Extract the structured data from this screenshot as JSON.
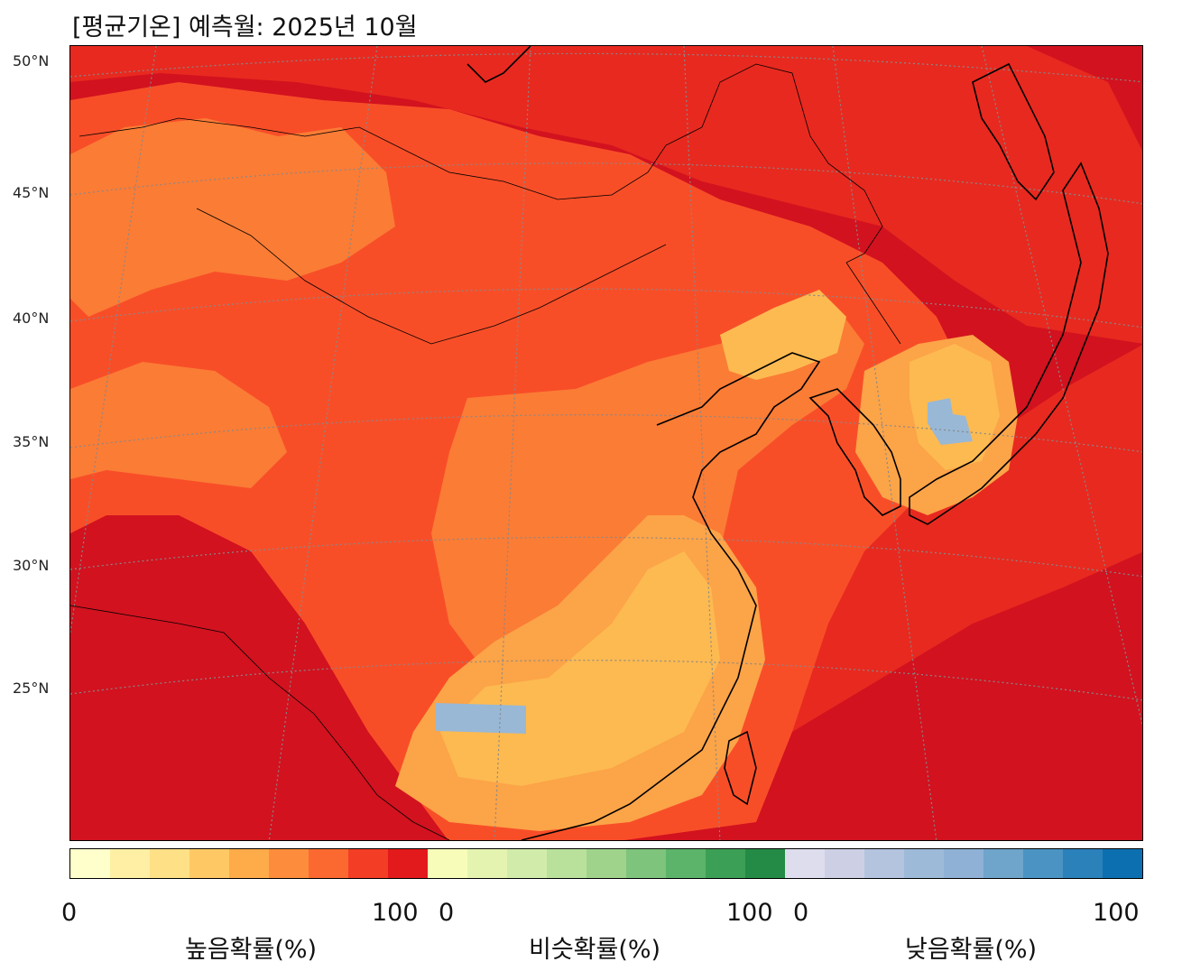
{
  "title": "[평균기온] 예측월: 2025년 10월",
  "latitude_labels": [
    "50°N",
    "45°N",
    "40°N",
    "35°N",
    "30°N",
    "25°N"
  ],
  "map_theme": "Seasonal temperature probability map of East Asia",
  "colorbar": {
    "groups": [
      {
        "label": "높음확률(%)",
        "min": "0",
        "max": "100",
        "colors": [
          "#ffffcc",
          "#ffefa5",
          "#fee087",
          "#fec965",
          "#feab4a",
          "#fd8d3c",
          "#fc6930",
          "#f43d25",
          "#e31a1c"
        ]
      },
      {
        "label": "비슷확률(%)",
        "min": "0",
        "max": "100",
        "colors": [
          "#f7fcb9",
          "#e4f4b0",
          "#d1ecaa",
          "#bae19b",
          "#9fd38c",
          "#7fc47c",
          "#5bb46a",
          "#3c9f56",
          "#238b45"
        ]
      },
      {
        "label": "낮음확률(%)",
        "min": "0",
        "max": "100",
        "colors": [
          "#dedded",
          "#cdd0e5",
          "#b4c4df",
          "#9ebad9",
          "#8fb1d5",
          "#6fa4cb",
          "#4b93c2",
          "#2b81ba",
          "#0c70b0"
        ]
      }
    ]
  },
  "map_colors": {
    "deep_red": "#d2121f",
    "red": "#e8291f",
    "orange_red": "#f84e28",
    "orange": "#fb7c35",
    "light_orange": "#fca448",
    "yellow_orange": "#fdba51",
    "low_blue": "#98b8d6"
  }
}
